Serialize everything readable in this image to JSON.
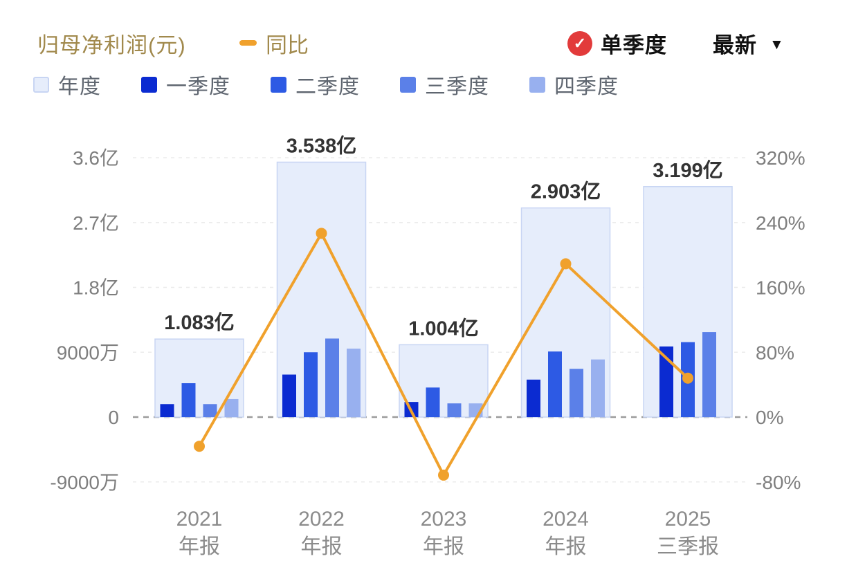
{
  "header": {
    "title": "归母净利润(元)",
    "line_legend": "同比",
    "single_quarter_label": "单季度",
    "latest_label": "最新",
    "caret": "▼",
    "check_glyph": "✓"
  },
  "legend": [
    {
      "label": "年度",
      "color": "#e6edfb",
      "border": "#c8d5f3"
    },
    {
      "label": "一季度",
      "color": "#0b2bd1"
    },
    {
      "label": "二季度",
      "color": "#2d5ae4"
    },
    {
      "label": "三季度",
      "color": "#5b80e8"
    },
    {
      "label": "四季度",
      "color": "#98b0ef"
    }
  ],
  "colors": {
    "yoy_line": "#f0a12c",
    "check_circle": "#e23b3b",
    "annual_fill": "#e6edfb",
    "annual_border": "#c8d5f3",
    "grid": "#ebebeb",
    "zero_line": "#9b9b9b",
    "axis_text": "#7e7e7e",
    "value_label": "#333333",
    "category_text": "#8b8b8b"
  },
  "chart_data": {
    "type": "bar",
    "subtype": "grouped quarterly bars over annual background bars with YoY percent line overlay",
    "title": "归母净利润(元)",
    "legend_position": "top-left",
    "grid": true,
    "categories": [
      {
        "year": "2021",
        "period": "年报"
      },
      {
        "year": "2022",
        "period": "年报"
      },
      {
        "year": "2023",
        "period": "年报"
      },
      {
        "year": "2024",
        "period": "年报"
      },
      {
        "year": "2025",
        "period": "三季报"
      }
    ],
    "annual": {
      "name": "年度",
      "labels": [
        "1.083亿",
        "3.538亿",
        "1.004亿",
        "2.903亿",
        "3.199亿"
      ],
      "values_yi": [
        1.083,
        3.538,
        1.004,
        2.903,
        3.199
      ]
    },
    "series": [
      {
        "name": "一季度",
        "values_yi": [
          0.18,
          0.59,
          0.21,
          0.52,
          0.98
        ]
      },
      {
        "name": "二季度",
        "values_yi": [
          0.47,
          0.9,
          0.41,
          0.91,
          1.04
        ]
      },
      {
        "name": "三季度",
        "values_yi": [
          0.18,
          1.09,
          0.19,
          0.67,
          1.18
        ]
      },
      {
        "name": "四季度",
        "values_yi": [
          0.25,
          0.95,
          0.19,
          0.8,
          null
        ]
      }
    ],
    "yoy_line": {
      "name": "同比",
      "values_pct": [
        -36,
        226.7,
        -71.6,
        189.1,
        48
      ],
      "color": "#f0a12c"
    },
    "left_axis": {
      "unit": "元",
      "ticks": [
        "3.6亿",
        "2.7亿",
        "1.8亿",
        "9000万",
        "0",
        "-9000万"
      ],
      "values_yi": [
        3.6,
        2.7,
        1.8,
        0.9,
        0,
        -0.9
      ]
    },
    "right_axis": {
      "unit": "%",
      "ticks": [
        "320%",
        "240%",
        "160%",
        "80%",
        "0%",
        "-80%"
      ],
      "values_pct": [
        320,
        240,
        160,
        80,
        0,
        -80
      ]
    }
  }
}
